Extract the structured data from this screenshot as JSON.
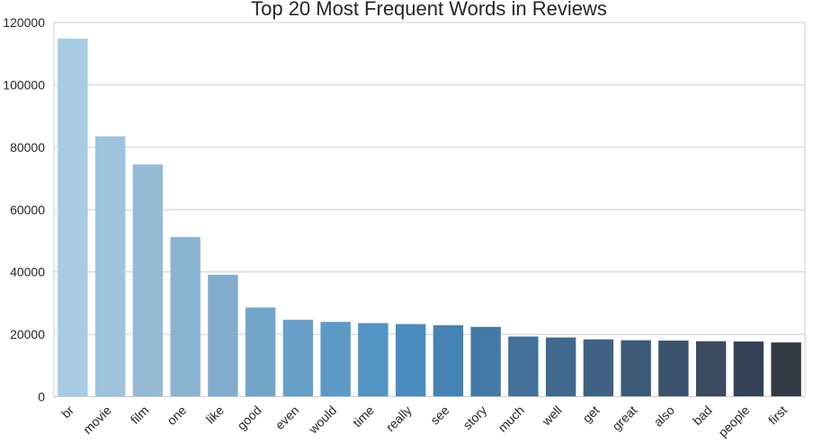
{
  "chart_data": {
    "type": "bar",
    "title": "Top 20 Most Frequent Words in Reviews",
    "xlabel": "",
    "ylabel": "",
    "ylim": [
      0,
      120000
    ],
    "yticks": [
      0,
      20000,
      40000,
      60000,
      80000,
      100000,
      120000
    ],
    "ytick_labels": [
      "0",
      "20000",
      "40000",
      "60000",
      "80000",
      "100000",
      "120000"
    ],
    "grid": "horizontal",
    "categories": [
      "br",
      "movie",
      "film",
      "one",
      "like",
      "good",
      "even",
      "would",
      "time",
      "really",
      "see",
      "story",
      "much",
      "well",
      "get",
      "great",
      "also",
      "bad",
      "people",
      "first"
    ],
    "values": [
      114800,
      83500,
      74500,
      51200,
      39100,
      28600,
      24700,
      24000,
      23600,
      23300,
      22900,
      22400,
      19300,
      19000,
      18400,
      18100,
      18000,
      17800,
      17700,
      17400
    ],
    "colors": [
      "#a7cbe2",
      "#9ec3db",
      "#95bbd5",
      "#8bb3cf",
      "#82abcc",
      "#73a5c9",
      "#68a0c8",
      "#5d9ac5",
      "#5394c4",
      "#4a8cc0",
      "#4683b5",
      "#447aa7",
      "#437199",
      "#41698d",
      "#3f6282",
      "#3d5b78",
      "#3b536d",
      "#394a61",
      "#354257",
      "#323a44"
    ]
  }
}
